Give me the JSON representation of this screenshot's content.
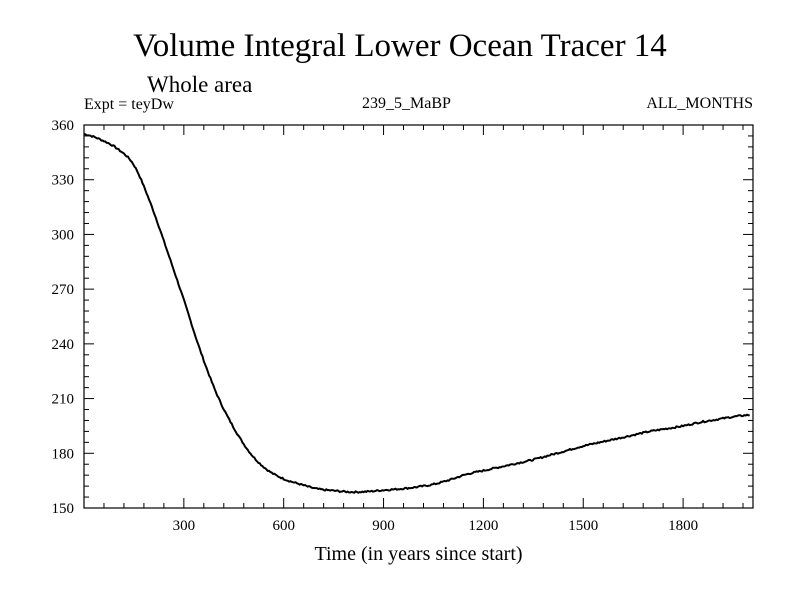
{
  "chart_data": {
    "type": "line",
    "title": "Volume Integral Lower Ocean Tracer 14",
    "subtitle": "Whole area",
    "annotation_left": "Expt = teyDw",
    "annotation_center": "239_5_MaBP",
    "annotation_right": "ALL_MONTHS",
    "xlabel": "Time (in years since start)",
    "ylabel": "",
    "xlim": [
      0,
      2010
    ],
    "ylim": [
      150,
      360
    ],
    "xticks": [
      300,
      600,
      900,
      1200,
      1500,
      1800
    ],
    "yticks": [
      150,
      180,
      210,
      240,
      270,
      300,
      330,
      360
    ],
    "grid": false,
    "series": [
      {
        "name": "teyDw",
        "x": [
          0,
          50,
          100,
          150,
          200,
          250,
          300,
          350,
          400,
          450,
          500,
          550,
          600,
          650,
          700,
          750,
          800,
          850,
          900,
          950,
          1000,
          1050,
          1100,
          1150,
          1200,
          1250,
          1300,
          1350,
          1400,
          1450,
          1500,
          1550,
          1600,
          1650,
          1700,
          1750,
          1800,
          1850,
          1900,
          1950,
          2000
        ],
        "values": [
          355,
          352,
          347,
          338,
          317,
          291,
          264,
          236,
          212,
          194,
          180,
          171,
          166,
          163,
          160.5,
          159.5,
          158.8,
          159,
          159.8,
          160.5,
          161.5,
          163,
          165.5,
          168.5,
          170.5,
          172.5,
          174.5,
          176.5,
          179,
          181.5,
          184,
          186,
          188,
          190,
          192,
          193.5,
          195,
          197,
          198.5,
          200,
          201
        ]
      }
    ]
  }
}
